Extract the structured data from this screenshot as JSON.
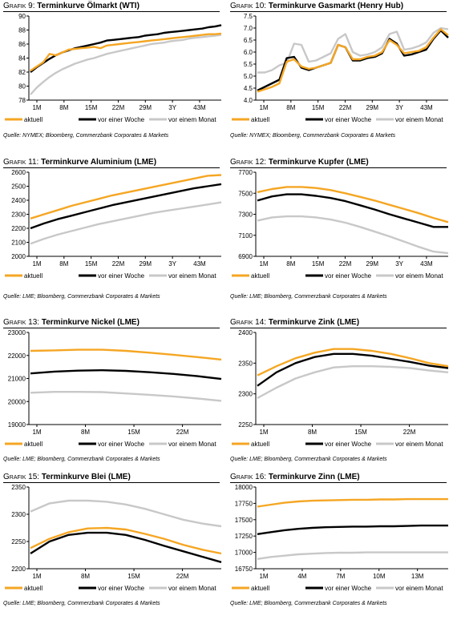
{
  "colors": {
    "aktuell": "#f5a623",
    "woche": "#000000",
    "monat": "#c8c8c8"
  },
  "chart_data": [
    {
      "id": "g9",
      "type": "line",
      "title_prefix": "Grafik 9:",
      "title": "Terminkurve Ölmarkt (WTI)",
      "source": "Quelle: NYMEX; Bloomberg, Commerzbank Corporates & Markets",
      "xlabels": [
        "1M",
        "8M",
        "15M",
        "22M",
        "29M",
        "3Y",
        "43M"
      ],
      "ylim": [
        78,
        90
      ],
      "yticks": [
        78,
        80,
        82,
        84,
        86,
        88,
        90
      ],
      "series": [
        {
          "name": "aktuell",
          "values": [
            82.2,
            82.8,
            83.4,
            84.6,
            84.4,
            84.8,
            85.2,
            85.3,
            85.4,
            85.5,
            85.6,
            85.4,
            85.8,
            85.9,
            86.0,
            86.1,
            86.2,
            86.3,
            86.4,
            86.5,
            86.6,
            86.7,
            86.8,
            86.9,
            87.0,
            87.1,
            87.2,
            87.3,
            87.4,
            87.4,
            87.5
          ]
        },
        {
          "name": "vor einer Woche",
          "values": [
            82.0,
            82.7,
            83.3,
            83.9,
            84.4,
            84.8,
            85.1,
            85.4,
            85.6,
            85.8,
            86.0,
            86.2,
            86.5,
            86.6,
            86.7,
            86.8,
            86.9,
            87.0,
            87.2,
            87.3,
            87.4,
            87.6,
            87.7,
            87.8,
            87.9,
            88.0,
            88.1,
            88.2,
            88.4,
            88.5,
            88.7
          ]
        },
        {
          "name": "vor einem Monat",
          "values": [
            78.8,
            79.8,
            80.6,
            81.3,
            81.9,
            82.4,
            82.8,
            83.2,
            83.5,
            83.8,
            84.0,
            84.3,
            84.6,
            84.8,
            85.0,
            85.2,
            85.4,
            85.6,
            85.8,
            86.0,
            86.1,
            86.2,
            86.4,
            86.5,
            86.6,
            86.8,
            86.9,
            87.0,
            87.1,
            87.2,
            87.3
          ]
        }
      ],
      "legend": [
        "aktuell",
        "vor einer Woche",
        "vor einem Monat"
      ]
    },
    {
      "id": "g10",
      "type": "line",
      "title_prefix": "Grafik 10:",
      "title": "Terminkurve Gasmarkt (Henry Hub)",
      "source": "Quelle: NYMEX; Bloomberg, Commerzbank Corporates & Markets",
      "xlabels": [
        "1M",
        "8M",
        "15M",
        "22M",
        "29M",
        "3Y",
        "43M"
      ],
      "ylim": [
        4.0,
        7.5
      ],
      "yticks": [
        4.0,
        4.5,
        5.0,
        5.5,
        6.0,
        6.5,
        7.0,
        7.5
      ],
      "series": [
        {
          "name": "aktuell",
          "values": [
            4.35,
            4.45,
            4.55,
            4.7,
            5.6,
            5.7,
            5.4,
            5.3,
            5.35,
            5.45,
            5.55,
            6.3,
            6.2,
            5.7,
            5.7,
            5.8,
            5.85,
            6.0,
            6.5,
            6.3,
            5.95,
            6.0,
            6.05,
            6.2,
            6.6,
            6.95,
            6.7
          ]
        },
        {
          "name": "vor einer Woche",
          "values": [
            4.4,
            4.55,
            4.7,
            4.85,
            5.75,
            5.8,
            5.35,
            5.25,
            5.35,
            5.45,
            5.55,
            6.3,
            6.2,
            5.65,
            5.65,
            5.75,
            5.8,
            5.95,
            6.55,
            6.35,
            5.85,
            5.9,
            6.0,
            6.1,
            6.55,
            6.9,
            6.6
          ]
        },
        {
          "name": "vor einem Monat",
          "values": [
            5.15,
            5.15,
            5.25,
            5.45,
            5.55,
            6.35,
            6.3,
            5.6,
            5.65,
            5.8,
            5.95,
            6.55,
            6.75,
            6.0,
            5.85,
            5.9,
            6.0,
            6.2,
            6.75,
            6.85,
            6.1,
            6.15,
            6.25,
            6.4,
            6.8,
            7.0,
            6.95
          ]
        }
      ],
      "legend": [
        "aktuell",
        "vor einer Woche",
        "vor einem Monat"
      ]
    },
    {
      "id": "g11",
      "type": "line",
      "title_prefix": "Grafik 11:",
      "title": "Terminkurve Aluminium (LME)",
      "source": "Quelle: LME; Bloomberg, Commerzbank Corporates & Markets",
      "xlabels": [
        "1M",
        "8M",
        "15M",
        "22M",
        "29M",
        "3Y",
        "43M"
      ],
      "ylim": [
        2000,
        2600
      ],
      "yticks": [
        2000,
        2100,
        2200,
        2300,
        2400,
        2500,
        2600
      ],
      "series": [
        {
          "name": "aktuell",
          "values": [
            2270,
            2300,
            2330,
            2360,
            2385,
            2410,
            2435,
            2455,
            2475,
            2495,
            2515,
            2535,
            2555,
            2575,
            2580
          ]
        },
        {
          "name": "vor einer Woche",
          "values": [
            2200,
            2235,
            2265,
            2290,
            2315,
            2340,
            2365,
            2385,
            2405,
            2425,
            2445,
            2465,
            2485,
            2500,
            2515
          ]
        },
        {
          "name": "vor einem Monat",
          "values": [
            2090,
            2125,
            2155,
            2180,
            2205,
            2230,
            2250,
            2270,
            2290,
            2310,
            2325,
            2340,
            2355,
            2370,
            2385
          ]
        }
      ],
      "legend": [
        "aktuell",
        "vor einer Woche",
        "vor einem Monat"
      ]
    },
    {
      "id": "g12",
      "type": "line",
      "title_prefix": "Grafik 12:",
      "title": "Terminkurve Kupfer (LME)",
      "source": "Quelle: LME; Bloomberg, Commerzbank Corporates & Markets",
      "xlabels": [
        "1M",
        "8M",
        "15M",
        "22M",
        "29M",
        "3Y",
        "43M"
      ],
      "ylim": [
        6900,
        7700
      ],
      "yticks": [
        6900,
        7100,
        7300,
        7500,
        7700
      ],
      "series": [
        {
          "name": "aktuell",
          "values": [
            7510,
            7540,
            7560,
            7560,
            7550,
            7530,
            7500,
            7465,
            7430,
            7390,
            7350,
            7310,
            7265,
            7225
          ]
        },
        {
          "name": "vor einer Woche",
          "values": [
            7430,
            7470,
            7490,
            7490,
            7475,
            7455,
            7425,
            7385,
            7345,
            7300,
            7260,
            7220,
            7180,
            7180
          ]
        },
        {
          "name": "vor einem Monat",
          "values": [
            7240,
            7270,
            7280,
            7280,
            7270,
            7250,
            7220,
            7180,
            7135,
            7090,
            7040,
            6990,
            6945,
            6930
          ]
        }
      ],
      "legend": [
        "aktuell",
        "vor einer Woche",
        "vor einem Monat"
      ]
    },
    {
      "id": "g13",
      "type": "line",
      "title_prefix": "Grafik 13:",
      "title": "Terminkurve Nickel (LME)",
      "source": "Quelle: LME; Bloomberg, Commerzbank Corporates & Markets",
      "xlabels": [
        "1M",
        "8M",
        "15M",
        "22M"
      ],
      "ylim": [
        19000,
        23000
      ],
      "yticks": [
        19000,
        20000,
        21000,
        22000,
        23000
      ],
      "series": [
        {
          "name": "aktuell",
          "values": [
            22200,
            22220,
            22250,
            22250,
            22200,
            22120,
            22030,
            21930,
            21820
          ]
        },
        {
          "name": "vor einer Woche",
          "values": [
            21220,
            21300,
            21340,
            21360,
            21330,
            21270,
            21200,
            21100,
            20980
          ]
        },
        {
          "name": "vor einem Monat",
          "values": [
            20380,
            20420,
            20420,
            20410,
            20350,
            20290,
            20220,
            20130,
            20030
          ]
        }
      ],
      "legend": [
        "aktuell",
        "vor einer Woche",
        "vor einem Monat"
      ]
    },
    {
      "id": "g14",
      "type": "line",
      "title_prefix": "Grafik 14:",
      "title": "Terminkurve Zink (LME)",
      "source": "Quelle: LME; Bloomberg, Commerzbank Corporates & Markets",
      "xlabels": [
        "1M",
        "8M",
        "15M",
        "22M"
      ],
      "ylim": [
        2250,
        2400
      ],
      "yticks": [
        2250,
        2300,
        2350,
        2400
      ],
      "series": [
        {
          "name": "aktuell",
          "values": [
            2330,
            2345,
            2358,
            2367,
            2373,
            2373,
            2370,
            2365,
            2358,
            2350,
            2345
          ]
        },
        {
          "name": "vor einer Woche",
          "values": [
            2313,
            2335,
            2350,
            2360,
            2365,
            2365,
            2362,
            2357,
            2352,
            2346,
            2342
          ]
        },
        {
          "name": "vor einem Monat",
          "values": [
            2293,
            2310,
            2325,
            2335,
            2343,
            2345,
            2345,
            2344,
            2342,
            2338,
            2335
          ]
        }
      ],
      "legend": [
        "aktuell",
        "vor einer Woche",
        "vor einem Monat"
      ]
    },
    {
      "id": "g15",
      "type": "line",
      "title_prefix": "Grafik 15:",
      "title": "Terminkurve Blei (LME)",
      "source": "Quelle: LME; Bloomberg, Commerzbank Corporates & Markets",
      "xlabels": [
        "1M",
        "8M",
        "15M",
        "22M"
      ],
      "ylim": [
        2200,
        2350
      ],
      "yticks": [
        2200,
        2250,
        2300,
        2350
      ],
      "series": [
        {
          "name": "aktuell",
          "values": [
            2238,
            2255,
            2267,
            2274,
            2275,
            2272,
            2264,
            2255,
            2244,
            2235,
            2228
          ]
        },
        {
          "name": "vor einer Woche",
          "values": [
            2228,
            2250,
            2262,
            2266,
            2266,
            2262,
            2253,
            2242,
            2232,
            2222,
            2212
          ]
        },
        {
          "name": "vor einem Monat",
          "values": [
            2305,
            2320,
            2325,
            2325,
            2323,
            2318,
            2310,
            2300,
            2290,
            2283,
            2278
          ]
        }
      ],
      "legend": [
        "aktuell",
        "vor einer Woche",
        "vor einem Monat"
      ]
    },
    {
      "id": "g16",
      "type": "line",
      "title_prefix": "Grafik 16:",
      "title": "Terminkurve Zinn (LME)",
      "source": "Quelle: LME; Bloomberg, Commerzbank Corporates & Markets",
      "xlabels": [
        "1M",
        "4M",
        "7M",
        "10M",
        "13M"
      ],
      "ylim": [
        16750,
        18000
      ],
      "yticks": [
        16750,
        17000,
        17250,
        17500,
        17750,
        18000
      ],
      "series": [
        {
          "name": "aktuell",
          "values": [
            17700,
            17730,
            17760,
            17780,
            17790,
            17795,
            17800,
            17805,
            17805,
            17810,
            17810,
            17815,
            17815,
            17815,
            17815
          ]
        },
        {
          "name": "vor einer Woche",
          "values": [
            17280,
            17310,
            17340,
            17360,
            17375,
            17385,
            17390,
            17395,
            17395,
            17400,
            17400,
            17405,
            17410,
            17410,
            17410
          ]
        },
        {
          "name": "vor einem Monat",
          "values": [
            16900,
            16930,
            16950,
            16970,
            16980,
            16990,
            16995,
            16995,
            17000,
            17000,
            17000,
            17000,
            17000,
            17000,
            17000
          ]
        }
      ],
      "legend": [
        "aktuell",
        "vor einer Woche",
        "vor einem Monat"
      ]
    }
  ]
}
